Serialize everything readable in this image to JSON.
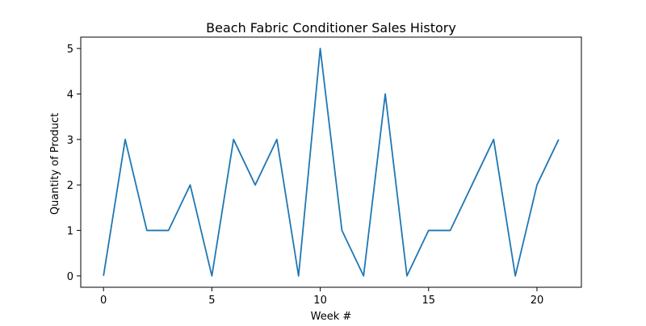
{
  "chart_data": {
    "type": "line",
    "title": "Beach Fabric Conditioner Sales History",
    "xlabel": "Week #",
    "ylabel": "Quantity of Product",
    "xlim": [
      -1.05,
      22.05
    ],
    "ylim": [
      -0.25,
      5.25
    ],
    "xticks": [
      0,
      5,
      10,
      15,
      20
    ],
    "yticks": [
      0,
      1,
      2,
      3,
      4,
      5
    ],
    "grid": false,
    "series": [
      {
        "color": "#1f77b4",
        "x": [
          0,
          1,
          2,
          3,
          4,
          5,
          6,
          7,
          8,
          9,
          10,
          11,
          12,
          13,
          14,
          15,
          16,
          17,
          18,
          19,
          20,
          21
        ],
        "y": [
          0,
          3,
          1,
          1,
          2,
          0,
          3,
          2,
          3,
          0,
          5,
          1,
          0,
          4,
          0,
          1,
          1,
          2,
          3,
          0,
          2,
          3
        ]
      }
    ]
  }
}
